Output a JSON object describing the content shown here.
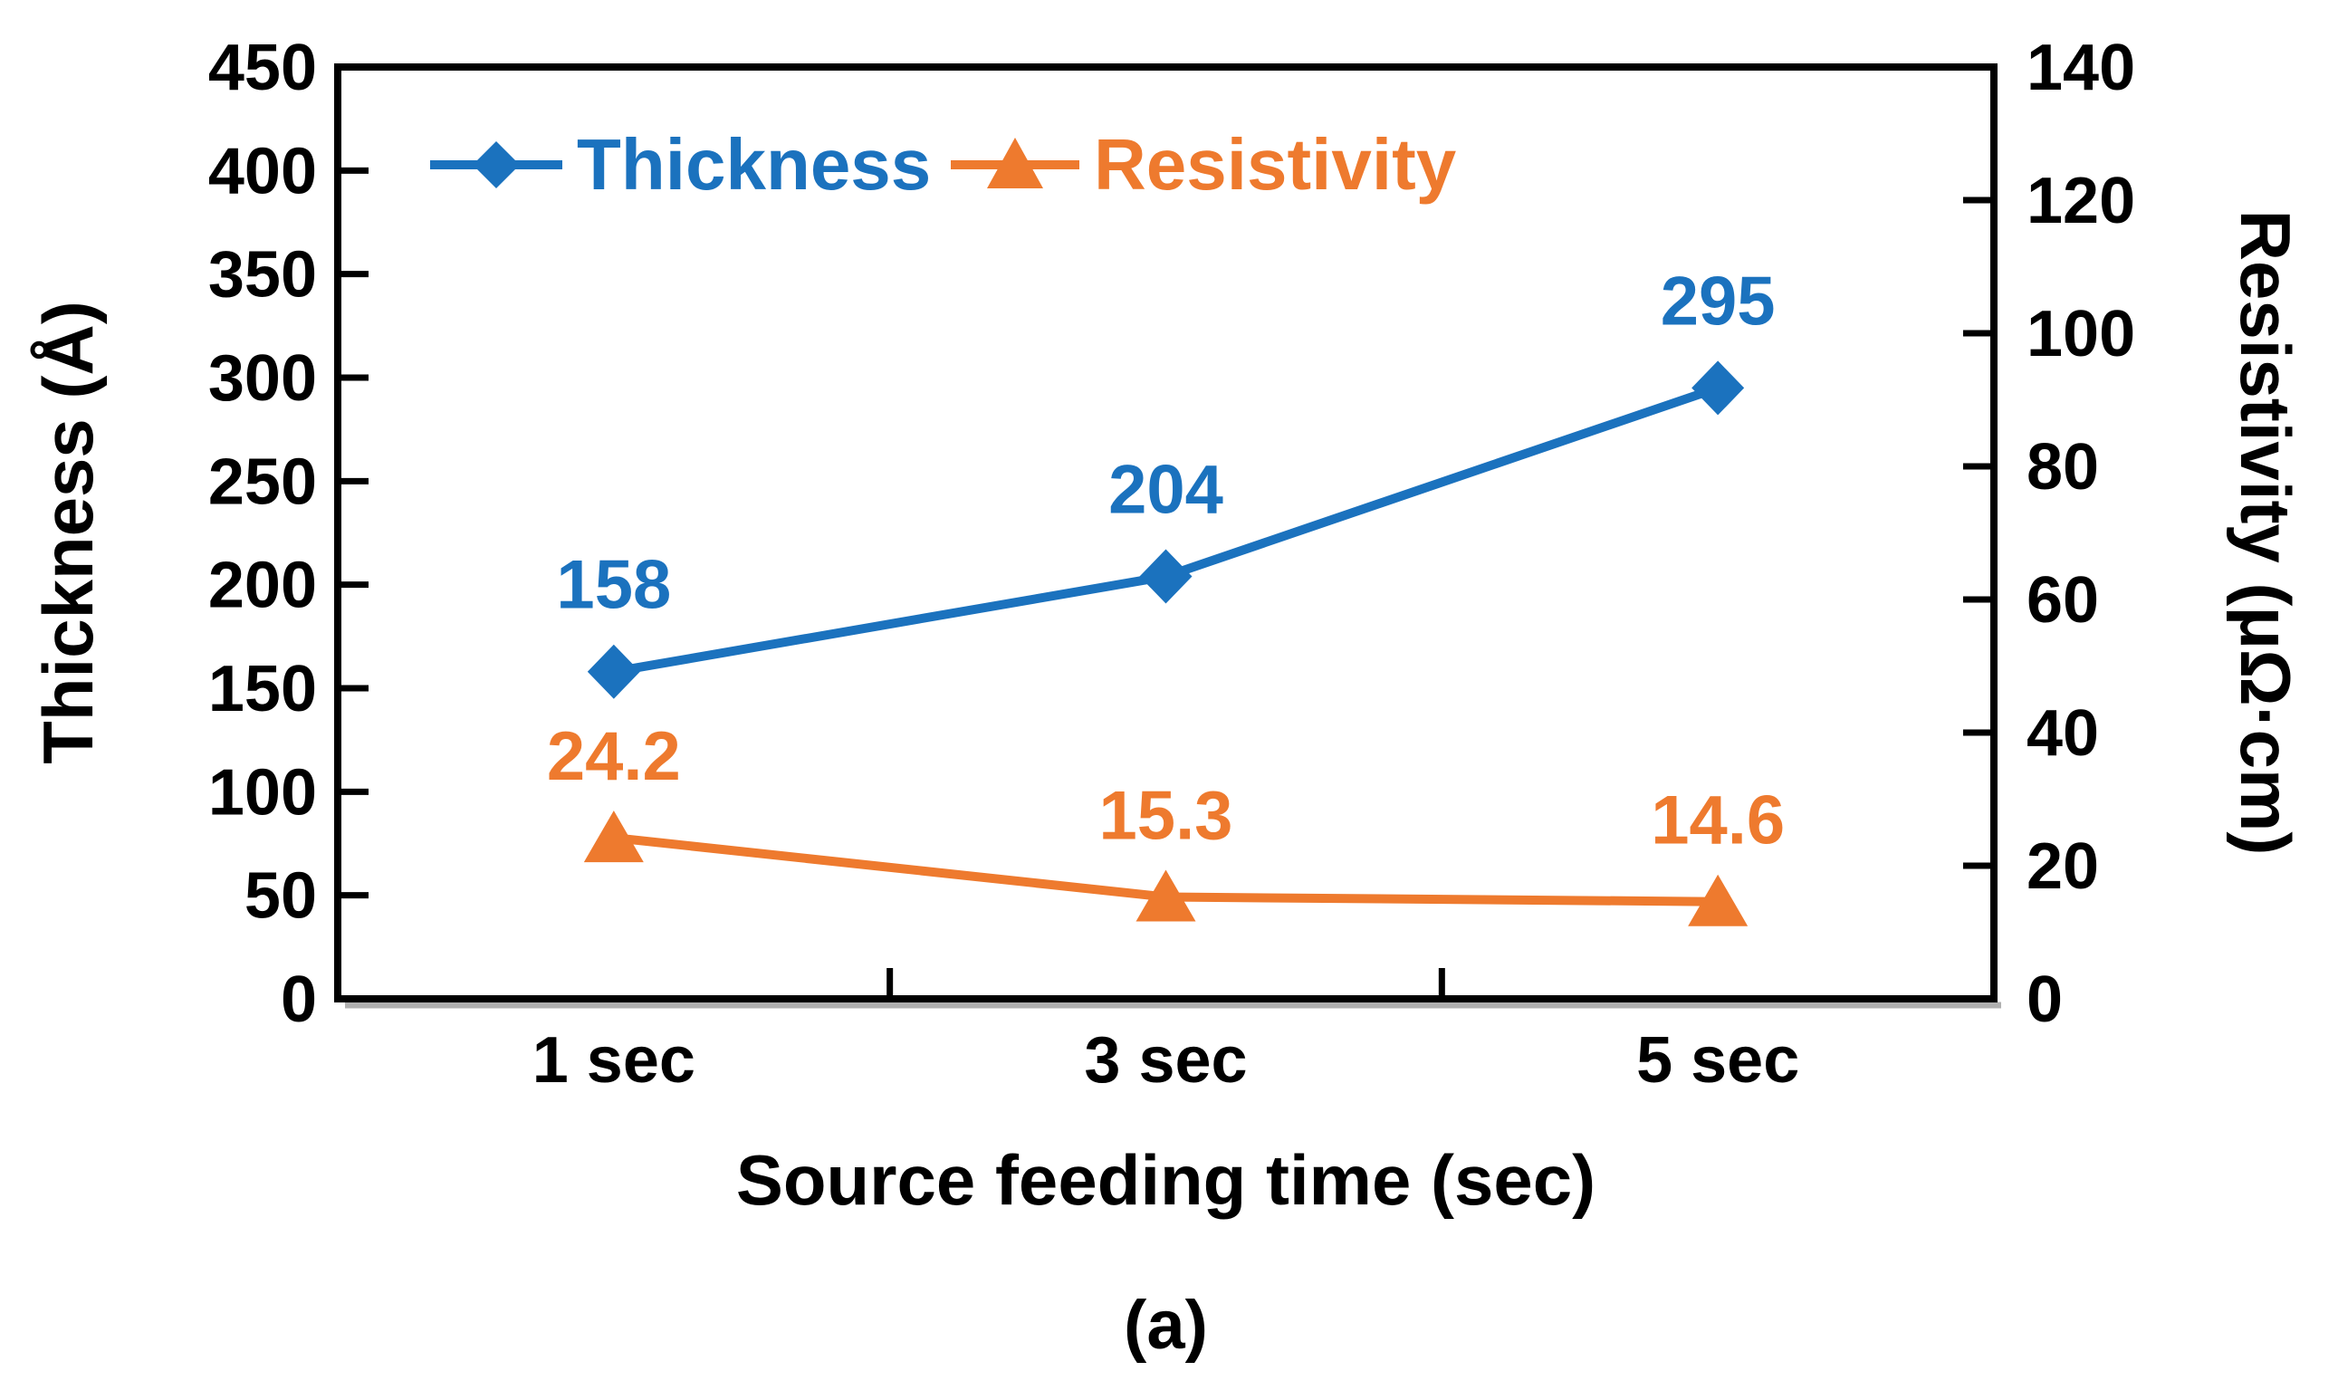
{
  "figure": {
    "caption": "(a)"
  },
  "chart_data": {
    "type": "line",
    "categories": [
      "1 sec",
      "3 sec",
      "5 sec"
    ],
    "series": [
      {
        "name": "Thickness",
        "axis": "left",
        "marker": "diamond",
        "color": "#1B72BE",
        "values": [
          158,
          204,
          295
        ],
        "labels": [
          "158",
          "204",
          "295"
        ]
      },
      {
        "name": "Resistivity",
        "axis": "right",
        "marker": "triangle",
        "color": "#EE7A2E",
        "values": [
          24.2,
          15.3,
          14.6
        ],
        "labels": [
          "24.2",
          "15.3",
          "14.6"
        ]
      }
    ],
    "left_axis": {
      "title": "Thickness (Å)",
      "min": 0,
      "max": 450,
      "step": 50,
      "ticks": [
        0,
        50,
        100,
        150,
        200,
        250,
        300,
        350,
        400,
        450
      ]
    },
    "right_axis": {
      "title": "Resistivity (μΩ·cm)",
      "min": 0,
      "max": 140,
      "step": 20,
      "ticks": [
        0,
        20,
        40,
        60,
        80,
        100,
        120,
        140
      ]
    },
    "x_axis": {
      "title": "Source feeding time (sec)"
    },
    "legend": {
      "position": "top-inside",
      "entries": [
        "Thickness",
        "Resistivity"
      ]
    },
    "colors": {
      "axis_line": "#000000",
      "axis_shadow": "#b0b0b0",
      "background": "#ffffff"
    }
  }
}
